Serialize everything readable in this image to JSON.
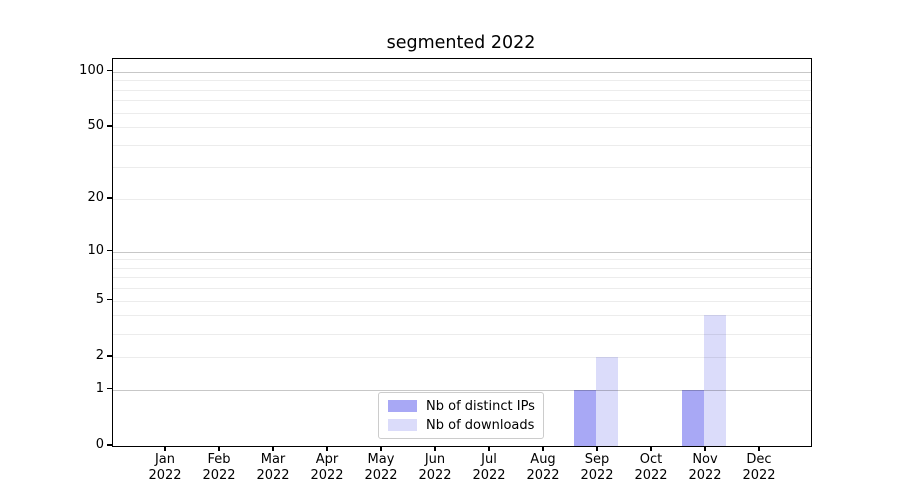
{
  "chart_data": {
    "type": "bar",
    "title": "segmented 2022",
    "xlabel": "",
    "ylabel": "",
    "months": [
      "Jan",
      "Feb",
      "Mar",
      "Apr",
      "May",
      "Jun",
      "Jul",
      "Aug",
      "Sep",
      "Oct",
      "Nov",
      "Dec"
    ],
    "x_tick_year": "2022",
    "series": [
      {
        "name": "Nb of distinct IPs",
        "color": "#a8a8f5",
        "values": [
          0,
          0,
          0,
          0,
          0,
          0,
          0,
          0,
          1,
          0,
          1,
          0
        ]
      },
      {
        "name": "Nb of downloads",
        "color": "#dbdcfa",
        "values": [
          0,
          0,
          0,
          0,
          0,
          0,
          0,
          0,
          2,
          0,
          4,
          0
        ]
      }
    ],
    "yscale": "log1p",
    "ylim": [
      0,
      117
    ],
    "ytick_values": [
      0,
      1,
      2,
      5,
      10,
      20,
      50,
      100
    ],
    "ytick_labels": [
      "0",
      "1",
      "2",
      "5",
      "10",
      "20",
      "50",
      "100"
    ],
    "grid_major_values": [
      1,
      10,
      100
    ],
    "grid_minor_values": [
      2,
      3,
      4,
      5,
      6,
      7,
      8,
      9,
      20,
      30,
      40,
      50,
      60,
      70,
      80,
      90
    ],
    "grid": "horizontal",
    "legend_position": "lower center",
    "colors": {
      "grid_major": "rgba(0,0,0,0.22)",
      "grid_minor": "rgba(0,0,0,0.075)",
      "spine": "#000000",
      "background": "#ffffff"
    }
  }
}
